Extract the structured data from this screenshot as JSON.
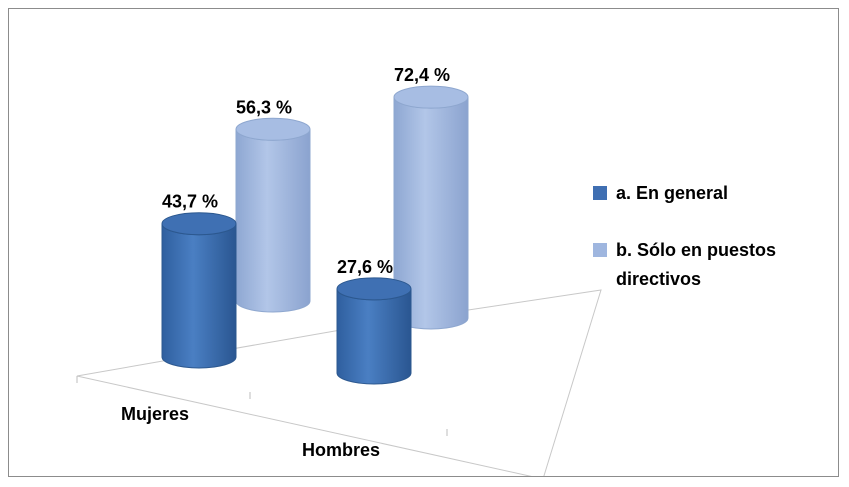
{
  "chart_data": {
    "type": "bar",
    "categories": [
      "Mujeres",
      "Hombres"
    ],
    "series": [
      {
        "name": "a.   En general",
        "values": [
          43.7,
          27.6
        ],
        "labels": [
          "43,7 %",
          "27,6 %"
        ],
        "color": "#3f6fb2"
      },
      {
        "name": "b.   Sólo en puestos directivos",
        "values": [
          56.3,
          72.4
        ],
        "labels": [
          "56,3 %",
          "72,4 %"
        ],
        "color": "#9fb6df"
      }
    ],
    "legend": "right",
    "style": "3d-cylinder"
  }
}
